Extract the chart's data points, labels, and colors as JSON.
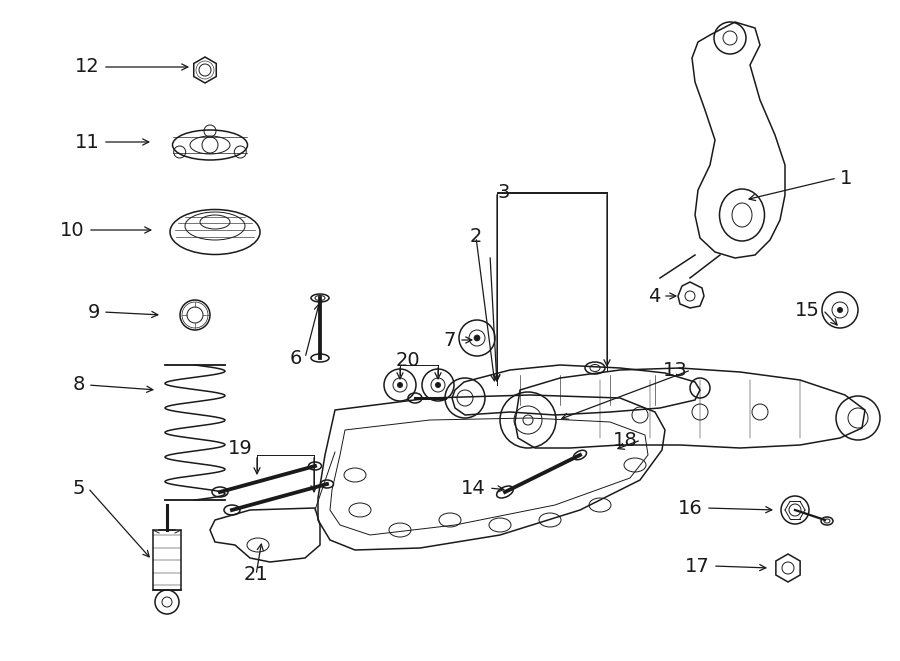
{
  "bg_color": "#ffffff",
  "line_color": "#1a1a1a",
  "fig_width": 9.0,
  "fig_height": 6.61,
  "font_size": 14,
  "lw_main": 1.1,
  "lw_thin": 0.7
}
